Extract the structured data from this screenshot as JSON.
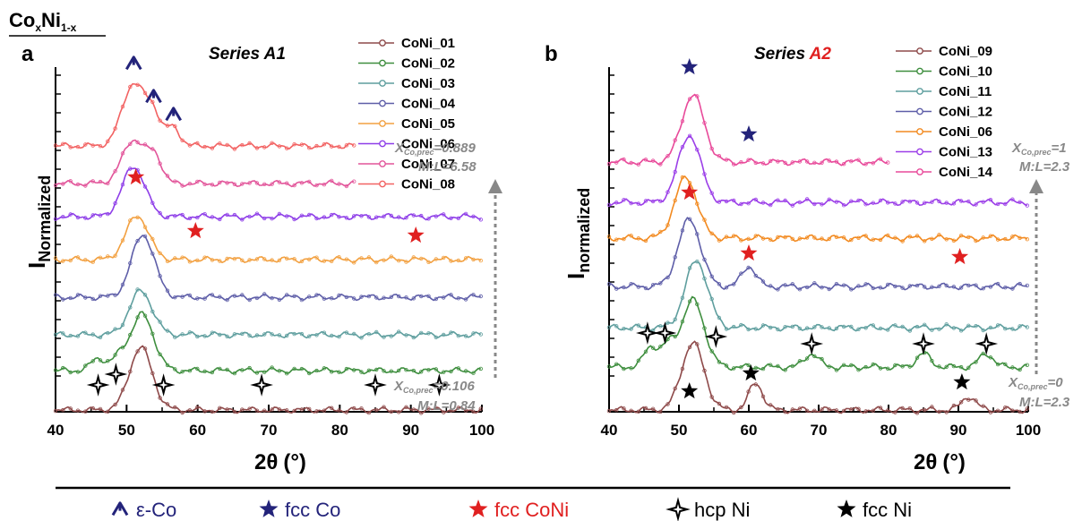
{
  "figure": {
    "compound": {
      "base": "Co",
      "sub1": "x",
      "mid": "Ni",
      "sub2": "1-x"
    },
    "xlabel_main": "2θ",
    "xlabel_unit": "(°)",
    "legend_markers": [
      {
        "symbol": "eps",
        "label": "ε-Co",
        "color": "#23237a"
      },
      {
        "symbol": "star",
        "label": "fcc Co",
        "color": "#23237a"
      },
      {
        "symbol": "star",
        "label": "fcc CoNi",
        "color": "#e02020"
      },
      {
        "symbol": "hcp",
        "label": "hcp Ni",
        "color": "#000000"
      },
      {
        "symbol": "star",
        "label": "fcc Ni",
        "color": "#000000"
      }
    ]
  },
  "chart_data": [
    {
      "type": "line",
      "panel": "a",
      "title": "Series A1",
      "ylabel_main": "I",
      "ylabel_sub": "Normalized",
      "xlim": [
        40,
        100
      ],
      "xticks": [
        40,
        50,
        60,
        70,
        80,
        90,
        100
      ],
      "series": [
        {
          "name": "CoNi_01",
          "color": "#8e4a4a",
          "peaks": [
            [
              52,
              1.0
            ]
          ]
        },
        {
          "name": "CoNi_02",
          "color": "#3e8e3e",
          "peaks": [
            [
              46,
              0.2
            ],
            [
              49,
              0.2
            ],
            [
              52.2,
              0.9
            ]
          ]
        },
        {
          "name": "CoNi_03",
          "color": "#5e9e9e",
          "peaks": [
            [
              52,
              0.7
            ]
          ]
        },
        {
          "name": "CoNi_04",
          "color": "#5e5ea8",
          "peaks": [
            [
              52.3,
              1.0
            ]
          ]
        },
        {
          "name": "CoNi_05",
          "color": "#f2a040",
          "peaks": [
            [
              51.5,
              0.7
            ]
          ]
        },
        {
          "name": "CoNi_06",
          "color": "#8e3ee8",
          "peaks": [
            [
              51,
              0.8
            ]
          ]
        },
        {
          "name": "CoNi_07",
          "color": "#e2559a",
          "peaks": [
            [
              51,
              0.7
            ],
            [
              54,
              0.4
            ]
          ]
        },
        {
          "name": "CoNi_08",
          "color": "#f26262",
          "peaks": [
            [
              51,
              1.0
            ],
            [
              53.8,
              0.45
            ],
            [
              56.5,
              0.3
            ]
          ]
        }
      ],
      "annotations": {
        "top_x": "X",
        "top_x_sub": "Co,prec",
        "top_x_val": "=0.889",
        "top_ml": "M:L=6.58",
        "bottom_x": "X",
        "bottom_x_sub": "Co,prec",
        "bottom_x_val": "=0.106",
        "bottom_ml": "M:L=0.84"
      }
    },
    {
      "type": "line",
      "panel": "b",
      "title_part1": "Series ",
      "title_part2": "A2",
      "ylabel_main": "I",
      "ylabel_sub": "normalized",
      "xlim": [
        40,
        100
      ],
      "xticks": [
        40,
        50,
        60,
        70,
        80,
        90,
        100
      ],
      "series": [
        {
          "name": "CoNi_09",
          "color": "#8e4a4a",
          "peaks": [
            [
              52,
              1.0
            ],
            [
              61,
              0.4
            ],
            [
              91.5,
              0.2
            ]
          ]
        },
        {
          "name": "CoNi_10",
          "color": "#3e8e3e",
          "peaks": [
            [
              46,
              0.3
            ],
            [
              48.5,
              0.3
            ],
            [
              52,
              1.0
            ],
            [
              69,
              0.2
            ],
            [
              85,
              0.2
            ],
            [
              94,
              0.2
            ]
          ]
        },
        {
          "name": "CoNi_11",
          "color": "#5e9e9e",
          "peaks": [
            [
              52.5,
              1.0
            ]
          ]
        },
        {
          "name": "CoNi_12",
          "color": "#5e5ea8",
          "peaks": [
            [
              51.5,
              1.0
            ],
            [
              60,
              0.3
            ]
          ]
        },
        {
          "name": "CoNi_06",
          "color": "#f28a20",
          "peaks": [
            [
              51,
              0.9
            ]
          ]
        },
        {
          "name": "CoNi_13",
          "color": "#9b3ee8",
          "peaks": [
            [
              51.5,
              1.0
            ]
          ]
        },
        {
          "name": "CoNi_14",
          "color": "#e84a9a",
          "peaks": [
            [
              52,
              1.0
            ]
          ]
        }
      ],
      "annotations": {
        "top_x": "X",
        "top_x_sub": "Co,prec",
        "top_x_val": "=1",
        "top_ml": "M:L=2.3",
        "bottom_x": "X",
        "bottom_x_sub": "Co,prec",
        "bottom_x_val": "=0",
        "bottom_ml": "M:L=2.3"
      }
    }
  ]
}
